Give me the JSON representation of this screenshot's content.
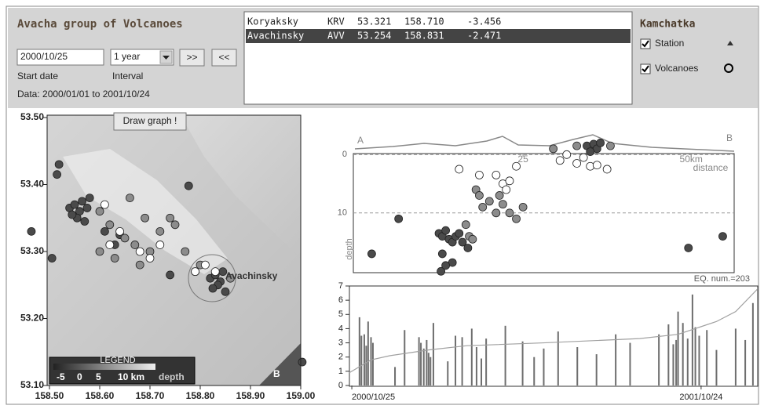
{
  "header": {
    "title": "Avacha group of Volcanoes",
    "start_date": "2000/10/25",
    "interval": "1 year",
    "next_button": ">>",
    "prev_button": "<<",
    "start_date_label": "Start date",
    "interval_label": "Interval",
    "data_range": "Data: 2000/01/01 to 2001/10/24"
  },
  "station_list": {
    "rows": [
      [
        "Koryaksky",
        "KRV",
        "53.321",
        "158.710",
        "-3.456"
      ],
      [
        "Avachinsky",
        "AVV",
        "53.254",
        "158.831",
        "-2.471"
      ]
    ],
    "selected": 1
  },
  "layers": {
    "title": "Kamchatka",
    "station": "Station",
    "volcanoes": "Volcanoes"
  },
  "map": {
    "draw_button": "Draw graph !",
    "volcano_label": "Avachinsky",
    "section_end": "B",
    "xlim": [
      158.5,
      159.0
    ],
    "ylim": [
      53.1,
      53.5
    ],
    "xticks": [
      {
        "value": 158.5,
        "label": "158.50"
      },
      {
        "value": 158.6,
        "label": "158.60"
      },
      {
        "value": 158.7,
        "label": "158.70"
      },
      {
        "value": 158.8,
        "label": "158.80"
      },
      {
        "value": 158.9,
        "label": "158.90"
      },
      {
        "value": 159.0,
        "label": "159.00"
      }
    ],
    "yticks": [
      {
        "value": 53.1,
        "label": "53.10"
      },
      {
        "value": 53.2,
        "label": "53.20"
      },
      {
        "value": 53.3,
        "label": "53.30"
      },
      {
        "value": 53.4,
        "label": "53.40"
      },
      {
        "value": 53.5,
        "label": "53.50"
      }
    ],
    "legend": {
      "title": "LEGEND",
      "labels": [
        "-5",
        "0",
        "5",
        "10 km"
      ],
      "unit": "depth"
    },
    "series": [
      {
        "color": "#4a4a4a",
        "lon": [
          158.54,
          158.55,
          158.56,
          158.565,
          158.575,
          158.555,
          158.545,
          158.57,
          158.58,
          158.82,
          158.83,
          158.84,
          158.835,
          158.825,
          158.845,
          158.85,
          158.777,
          158.464,
          158.505,
          159.003,
          158.519,
          158.61,
          158.63,
          158.64,
          158.74,
          158.515
        ],
        "lat": [
          53.365,
          53.37,
          53.36,
          53.375,
          53.365,
          53.35,
          53.355,
          53.345,
          53.38,
          53.26,
          53.265,
          53.255,
          53.25,
          53.245,
          53.27,
          53.24,
          53.398,
          53.33,
          53.29,
          53.135,
          53.43,
          53.33,
          53.31,
          53.325,
          53.265,
          53.415
        ]
      },
      {
        "color": "#8c8c8c",
        "lon": [
          158.6,
          158.62,
          158.65,
          158.67,
          158.7,
          158.72,
          158.74,
          158.75,
          158.77,
          158.68,
          158.69,
          158.79,
          158.8,
          158.86,
          158.6,
          158.63,
          158.66
        ],
        "lat": [
          53.36,
          53.34,
          53.32,
          53.31,
          53.3,
          53.33,
          53.35,
          53.34,
          53.3,
          53.28,
          53.35,
          53.27,
          53.28,
          53.26,
          53.3,
          53.29,
          53.38
        ]
      },
      {
        "color": "#ffffff",
        "lon": [
          158.61,
          158.62,
          158.68,
          158.7,
          158.72,
          158.79,
          158.81,
          158.83,
          158.64
        ],
        "lat": [
          53.37,
          53.31,
          53.3,
          53.29,
          53.31,
          53.27,
          53.28,
          53.27,
          53.33
        ]
      }
    ]
  },
  "cross_section": {
    "start_label": "A",
    "end_label": "B",
    "xlabel": "distance",
    "ylabel": "depth",
    "xlim": [
      0,
      56.4
    ],
    "ylim": [
      -3.4,
      20.5
    ],
    "xticks": [
      25,
      {
        "value": 50,
        "label": "50km"
      }
    ],
    "yticks": [
      0,
      10
    ],
    "series": [
      {
        "color": "#4a4a4a",
        "dist": [
          2.5,
          6.5,
          12.5,
          13,
          13.5,
          14,
          14.5,
          15,
          15.5,
          16,
          13,
          14.5,
          12.8,
          16.8,
          13.5,
          49.6,
          54.7,
          34.5,
          35.5,
          36,
          36.5,
          35
        ],
        "depth": [
          17,
          11,
          13.5,
          14,
          13,
          14.5,
          15,
          14,
          13.5,
          15,
          17,
          18.5,
          20,
          16,
          19,
          16,
          14,
          -1.5,
          -1.8,
          -1,
          -2,
          -0.5
        ]
      },
      {
        "color": "#8c8c8c",
        "dist": [
          16.5,
          17,
          18,
          18.5,
          19,
          20,
          21,
          22,
          23,
          24,
          25,
          17.5,
          21.5,
          29.5,
          33,
          38
        ],
        "depth": [
          12,
          14,
          6,
          7,
          9,
          8,
          10,
          8.5,
          10,
          11,
          9,
          14.5,
          7,
          -1,
          -1.5,
          -1.5
        ]
      },
      {
        "color": "#ffffff",
        "dist": [
          15.5,
          18.5,
          21,
          22,
          22.5,
          23,
          24,
          30.5,
          31.5,
          33,
          34,
          35,
          36,
          37.5
        ],
        "depth": [
          2.5,
          3.5,
          3.5,
          5,
          6,
          4.5,
          2,
          1,
          0,
          1.5,
          0.5,
          2,
          1.8,
          2.5
        ]
      }
    ]
  },
  "histogram": {
    "annotation": "EQ. num.=203",
    "xlim": [
      -2.5,
      423
    ],
    "ylim": [
      0,
      7
    ],
    "yticks": [
      0,
      1,
      2,
      3,
      4,
      5,
      6,
      7
    ],
    "xticks": [
      {
        "value": 0,
        "label": "2000/10/25"
      },
      {
        "value": 364,
        "label": "2001/10/24"
      }
    ],
    "bar_color": "#6e6e6e",
    "line_color": "#a0a0a0",
    "days": [
      8,
      10,
      13,
      15,
      17,
      20,
      22,
      45,
      55,
      70,
      72,
      75,
      78,
      80,
      82,
      85,
      100,
      108,
      115,
      125,
      130,
      135,
      140,
      160,
      178,
      190,
      200,
      215,
      235,
      255,
      275,
      290,
      320,
      330,
      335,
      338,
      340,
      345,
      350,
      355,
      358,
      362,
      370,
      380,
      400,
      410,
      418
    ],
    "values": [
      4.8,
      3.5,
      3.6,
      2.8,
      4.5,
      3.4,
      3.0,
      1.3,
      3.9,
      3.4,
      3.0,
      2.6,
      3.2,
      2.3,
      2.0,
      4.4,
      1.7,
      3.5,
      3.4,
      4.0,
      2.7,
      1.9,
      3.3,
      4.2,
      3.1,
      2.0,
      2.6,
      3.8,
      2.7,
      2.2,
      3.6,
      3.0,
      3.6,
      4.3,
      2.9,
      3.2,
      5.2,
      4.4,
      3.3,
      6.4,
      4.1,
      3.5,
      3.9,
      2.5,
      4.0,
      3.2,
      5.8
    ],
    "cumulative": {
      "x": [
        -2.5,
        20,
        40,
        80,
        120,
        200,
        300,
        340,
        380,
        400,
        423
      ],
      "values": [
        0.9,
        1.8,
        2.1,
        2.5,
        2.8,
        3.0,
        3.3,
        3.6,
        4.5,
        5.2,
        6.8
      ]
    }
  }
}
